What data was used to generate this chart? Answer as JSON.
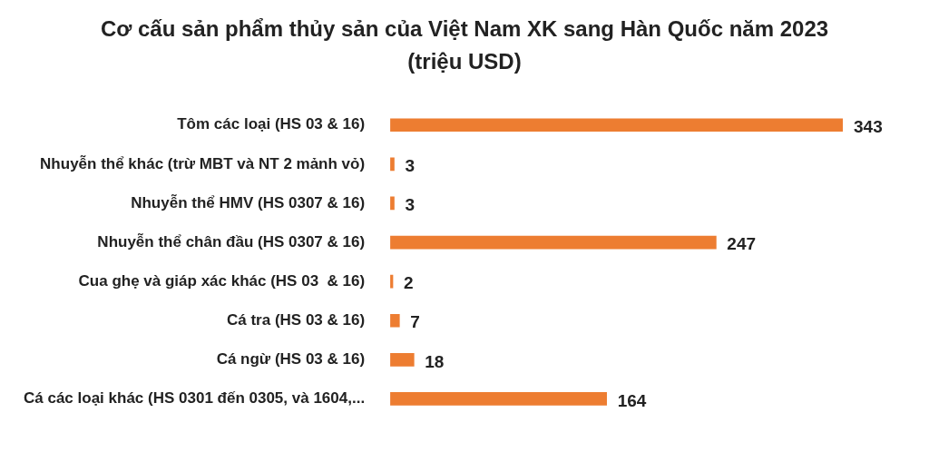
{
  "chart_data": {
    "type": "bar",
    "orientation": "horizontal",
    "title": "Cơ cấu sản phẩm thủy sản của Việt Nam XK sang Hàn Quốc năm 2023 (triệu USD)",
    "categories": [
      "Tôm các loại (HS 03 & 16)",
      "Nhuyễn thể khác (trừ MBT và NT 2 mảnh vỏ)",
      "Nhuyễn thể HMV (HS 0307 & 16)",
      "Nhuyễn thể chân đầu (HS 0307 & 16)",
      "Cua ghẹ và giáp xác khác (HS 03  & 16)",
      "Cá tra (HS 03 & 16)",
      "Cá ngừ (HS 03 & 16)",
      "Cá các loại khác (HS 0301 đến 0305, và 1604,..."
    ],
    "values": [
      343,
      3,
      3,
      247,
      2,
      7,
      18,
      164
    ],
    "color": "#ed7d31",
    "data_labels": true,
    "legend": false
  }
}
